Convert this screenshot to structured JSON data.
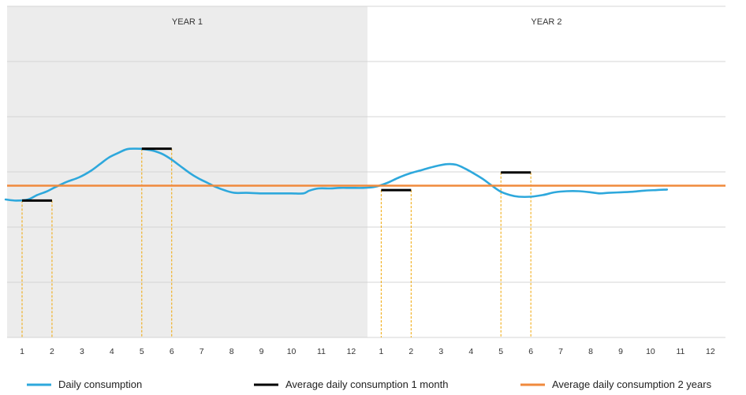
{
  "chart_data": {
    "type": "line",
    "regions": [
      {
        "label": "YEAR 1",
        "shaded": true,
        "shade_color": "#ececec"
      },
      {
        "label": "YEAR 2",
        "shaded": false
      }
    ],
    "x_tick_labels": [
      "1",
      "2",
      "3",
      "4",
      "5",
      "6",
      "7",
      "8",
      "9",
      "10",
      "11",
      "12",
      "1",
      "2",
      "3",
      "4",
      "5",
      "6",
      "7",
      "8",
      "9",
      "10",
      "11",
      "12"
    ],
    "ylim": [
      0,
      6
    ],
    "grid": true,
    "colors": {
      "daily": "#2ea8dc",
      "monthly": "#000000",
      "average": "#f08a3c",
      "guide": "#f0a500",
      "grid": "#d4d4d4"
    },
    "series": [
      {
        "name": "Daily consumption",
        "type": "line",
        "points": [
          [
            0.45,
            2.5
          ],
          [
            0.8,
            2.48
          ],
          [
            1.2,
            2.5
          ],
          [
            1.5,
            2.58
          ],
          [
            1.8,
            2.64
          ],
          [
            2.1,
            2.72
          ],
          [
            2.5,
            2.82
          ],
          [
            2.9,
            2.9
          ],
          [
            3.3,
            3.02
          ],
          [
            3.6,
            3.14
          ],
          [
            3.9,
            3.26
          ],
          [
            4.2,
            3.34
          ],
          [
            4.5,
            3.41
          ],
          [
            4.8,
            3.42
          ],
          [
            5.1,
            3.41
          ],
          [
            5.4,
            3.38
          ],
          [
            5.7,
            3.32
          ],
          [
            6.0,
            3.22
          ],
          [
            6.3,
            3.1
          ],
          [
            6.6,
            2.98
          ],
          [
            6.9,
            2.88
          ],
          [
            7.2,
            2.8
          ],
          [
            7.5,
            2.72
          ],
          [
            7.8,
            2.66
          ],
          [
            8.1,
            2.62
          ],
          [
            8.5,
            2.62
          ],
          [
            9.0,
            2.61
          ],
          [
            9.5,
            2.61
          ],
          [
            10.0,
            2.61
          ],
          [
            10.4,
            2.61
          ],
          [
            10.6,
            2.66
          ],
          [
            10.9,
            2.7
          ],
          [
            11.3,
            2.7
          ],
          [
            11.6,
            2.71
          ],
          [
            12.0,
            2.71
          ],
          [
            12.4,
            2.71
          ],
          [
            12.8,
            2.73
          ],
          [
            13.2,
            2.8
          ],
          [
            13.6,
            2.9
          ],
          [
            14.0,
            2.98
          ],
          [
            14.4,
            3.04
          ],
          [
            14.8,
            3.1
          ],
          [
            15.2,
            3.14
          ],
          [
            15.5,
            3.13
          ],
          [
            15.8,
            3.06
          ],
          [
            16.1,
            2.97
          ],
          [
            16.4,
            2.87
          ],
          [
            16.7,
            2.75
          ],
          [
            17.0,
            2.64
          ],
          [
            17.3,
            2.58
          ],
          [
            17.6,
            2.55
          ],
          [
            18.0,
            2.55
          ],
          [
            18.4,
            2.58
          ],
          [
            18.8,
            2.63
          ],
          [
            19.2,
            2.65
          ],
          [
            19.6,
            2.65
          ],
          [
            20.0,
            2.63
          ],
          [
            20.3,
            2.61
          ],
          [
            20.6,
            2.62
          ],
          [
            21.0,
            2.63
          ],
          [
            21.4,
            2.64
          ],
          [
            21.8,
            2.66
          ],
          [
            22.2,
            2.67
          ],
          [
            22.55,
            2.68
          ]
        ]
      },
      {
        "name": "Average daily consumption 1 month",
        "type": "segments",
        "segments": [
          {
            "x_from": 1,
            "x_to": 2,
            "y": 2.48
          },
          {
            "x_from": 5,
            "x_to": 6,
            "y": 3.42
          },
          {
            "x_from": 13,
            "x_to": 14,
            "y": 2.67
          },
          {
            "x_from": 17,
            "x_to": 18,
            "y": 2.99
          }
        ]
      },
      {
        "name": "Average daily consumption 2 years",
        "type": "hline",
        "y": 2.75
      }
    ],
    "guides_at_x": [
      1,
      2,
      5,
      6,
      13,
      14,
      17,
      18
    ],
    "legend": {
      "position": "bottom",
      "entries": [
        {
          "label": "Daily consumption",
          "color": "#2ea8dc"
        },
        {
          "label": "Average daily consumption 1 month",
          "color": "#000000"
        },
        {
          "label": "Average daily consumption 2 years",
          "color": "#f08a3c"
        }
      ]
    }
  }
}
